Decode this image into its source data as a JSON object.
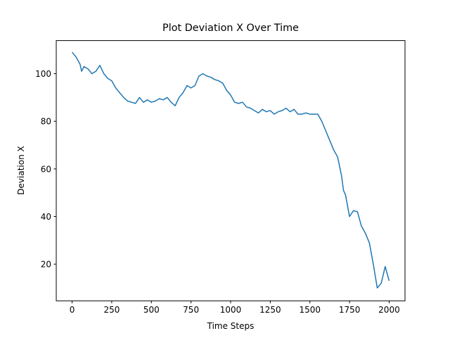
{
  "chart_data": {
    "type": "line",
    "title": "Plot Deviation X Over Time",
    "x_label": "Time Steps",
    "y_label": "Deviation X",
    "x": [
      0,
      25,
      50,
      60,
      75,
      100,
      125,
      150,
      175,
      200,
      225,
      250,
      275,
      300,
      325,
      350,
      375,
      400,
      425,
      450,
      475,
      500,
      525,
      550,
      575,
      600,
      625,
      650,
      675,
      700,
      725,
      750,
      775,
      800,
      825,
      850,
      875,
      900,
      925,
      950,
      975,
      1000,
      1025,
      1050,
      1075,
      1100,
      1125,
      1150,
      1175,
      1200,
      1225,
      1250,
      1275,
      1300,
      1325,
      1350,
      1375,
      1400,
      1425,
      1450,
      1475,
      1500,
      1525,
      1550,
      1575,
      1600,
      1625,
      1650,
      1675,
      1700,
      1712,
      1725,
      1750,
      1775,
      1800,
      1825,
      1850,
      1875,
      1900,
      1925,
      1950,
      1975,
      2000
    ],
    "values": [
      109,
      107,
      104,
      101,
      103,
      102,
      100,
      101,
      103.5,
      100,
      98,
      97,
      94,
      92,
      90,
      88.5,
      88,
      87.5,
      90,
      88,
      89,
      88,
      88.5,
      89.5,
      89,
      90,
      88,
      86.5,
      90,
      92,
      95,
      94,
      95,
      99,
      100,
      99,
      98.5,
      97.5,
      97,
      96,
      93,
      91,
      88,
      87.5,
      88,
      86,
      85.5,
      84.5,
      83.5,
      85,
      84,
      84.5,
      83,
      84,
      84.5,
      85.5,
      84,
      85,
      83,
      83,
      83.5,
      83,
      83,
      83,
      80,
      76,
      72,
      68,
      65,
      57,
      51,
      49,
      40,
      42.5,
      42,
      36,
      33,
      29,
      20,
      10,
      12,
      19,
      13
    ],
    "color": "#1f77b4",
    "xlim": [
      -100,
      2100
    ],
    "xticks": [
      0,
      250,
      500,
      750,
      1000,
      1250,
      1500,
      1750,
      2000
    ],
    "ylim": [
      4.6,
      113.9
    ],
    "yticks": [
      20,
      40,
      60,
      80,
      100
    ]
  }
}
